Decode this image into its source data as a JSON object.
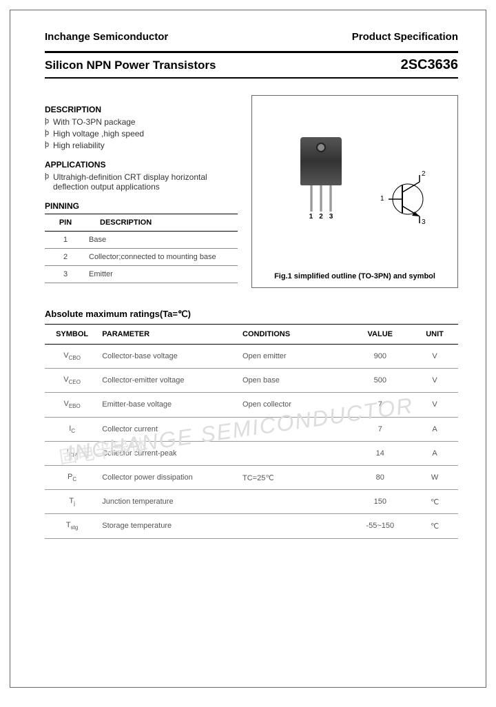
{
  "header": {
    "left": "Inchange Semiconductor",
    "right": "Product Specification"
  },
  "title": {
    "left": "Silicon NPN Power Transistors",
    "right": "2SC3636"
  },
  "description": {
    "heading": "DESCRIPTION",
    "items": [
      "With TO-3PN package",
      "High voltage ,high speed",
      "High reliability"
    ]
  },
  "applications": {
    "heading": "APPLICATIONS",
    "items": [
      "Ultrahigh-definition CRT display horizontal deflection output applications"
    ]
  },
  "pinning": {
    "heading": "PINNING",
    "columns": [
      "PIN",
      "DESCRIPTION"
    ],
    "rows": [
      [
        "1",
        "Base"
      ],
      [
        "2",
        "Collector;connected to mounting base"
      ],
      [
        "3",
        "Emitter"
      ]
    ]
  },
  "figure": {
    "pin_labels": [
      "1",
      "2",
      "3"
    ],
    "symbol_labels": {
      "base": "1",
      "collector": "2",
      "emitter": "3"
    },
    "caption": "Fig.1 simplified outline (TO-3PN) and symbol"
  },
  "ratings": {
    "heading": "Absolute maximum ratings(Ta=℃)",
    "columns": [
      "SYMBOL",
      "PARAMETER",
      "CONDITIONS",
      "VALUE",
      "UNIT"
    ],
    "rows": [
      {
        "symbol": "V",
        "sub": "CBO",
        "parameter": "Collector-base voltage",
        "conditions": "Open emitter",
        "value": "900",
        "unit": "V"
      },
      {
        "symbol": "V",
        "sub": "CEO",
        "parameter": "Collector-emitter voltage",
        "conditions": "Open base",
        "value": "500",
        "unit": "V"
      },
      {
        "symbol": "V",
        "sub": "EBO",
        "parameter": "Emitter-base voltage",
        "conditions": "Open collector",
        "value": "7",
        "unit": "V"
      },
      {
        "symbol": "I",
        "sub": "C",
        "parameter": "Collector current",
        "conditions": "",
        "value": "7",
        "unit": "A"
      },
      {
        "symbol": "I",
        "sub": "CM",
        "parameter": "Collector current-peak",
        "conditions": "",
        "value": "14",
        "unit": "A"
      },
      {
        "symbol": "P",
        "sub": "C",
        "parameter": "Collector power dissipation",
        "conditions": "TC=25℃",
        "value": "80",
        "unit": "W"
      },
      {
        "symbol": "T",
        "sub": "j",
        "parameter": "Junction temperature",
        "conditions": "",
        "value": "150",
        "unit": "℃"
      },
      {
        "symbol": "T",
        "sub": "stg",
        "parameter": "Storage temperature",
        "conditions": "",
        "value": "-55~150",
        "unit": "℃"
      }
    ]
  },
  "watermark": "INCHANGE SEMICONDUCTOR",
  "watermark2": "固电半导体",
  "colors": {
    "border": "#666666",
    "text": "#000000",
    "subtext": "#555555",
    "line": "#999999"
  }
}
